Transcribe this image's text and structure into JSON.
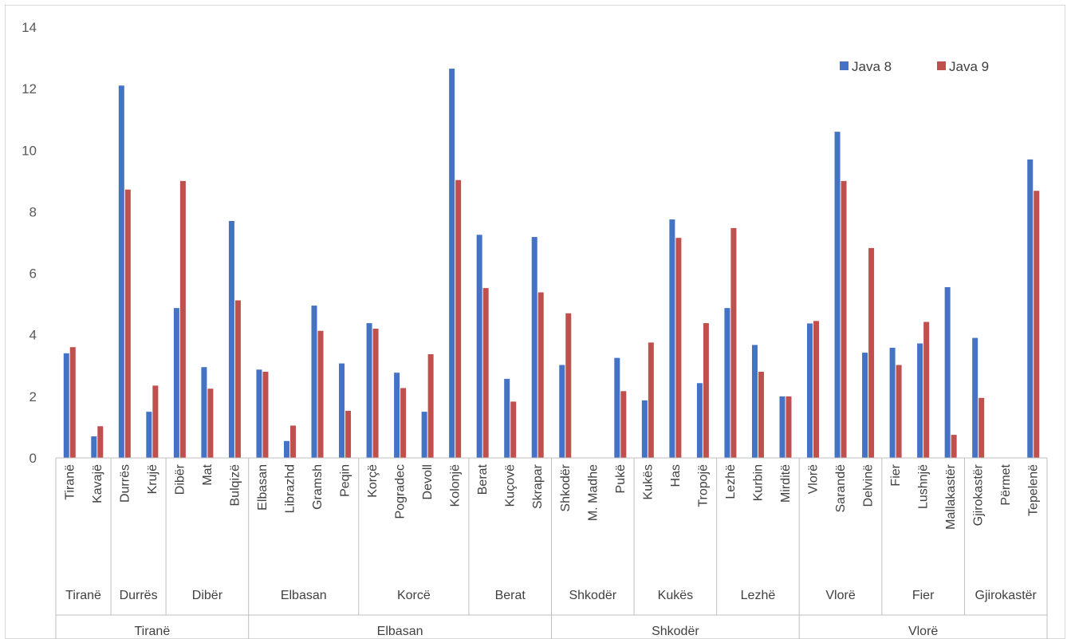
{
  "chart_data": {
    "type": "bar",
    "title": "",
    "xlabel": "",
    "ylabel": "",
    "ylim": [
      0,
      14
    ],
    "yticks": [
      "0",
      "2",
      "4",
      "6",
      "8",
      "10",
      "12",
      "14"
    ],
    "grid": false,
    "legend_position": "top-right",
    "colors": {
      "Java 8": "#4472C4",
      "Java 9": "#C0504D"
    },
    "categories": [
      "Tiranë",
      "Kavajë",
      "Durrës",
      "Krujë",
      "Dibër",
      "Mat",
      "Bulqizë",
      "Elbasan",
      "Librazhd",
      "Gramsh",
      "Peqin",
      "Korçë",
      "Pogradec",
      "Devoll",
      "Kolonjë",
      "Berat",
      "Kuçovë",
      "Skrapar",
      "Shkodër",
      "M. Madhe",
      "Pukë",
      "Kukës",
      "Has",
      "Tropojë",
      "Lezhë",
      "Kurbin",
      "Mirditë",
      "Vlorë",
      "Sarandë",
      "Delvinë",
      "Fier",
      "Lushnjë",
      "Mallakastër",
      "Gjirokastër",
      "Përmet",
      "Tepelenë"
    ],
    "level2": [
      {
        "label": "Tiranë",
        "span": 2
      },
      {
        "label": "Durrës",
        "span": 2
      },
      {
        "label": "Dibër",
        "span": 3
      },
      {
        "label": "Elbasan",
        "span": 4
      },
      {
        "label": "Korcë",
        "span": 4
      },
      {
        "label": "Berat",
        "span": 3
      },
      {
        "label": "Shkodër",
        "span": 3
      },
      {
        "label": "Kukës",
        "span": 3
      },
      {
        "label": "Lezhë",
        "span": 3
      },
      {
        "label": "Vlorë",
        "span": 3
      },
      {
        "label": "Fier",
        "span": 3
      },
      {
        "label": "Gjirokastër",
        "span": 3
      }
    ],
    "level3": [
      {
        "label": "Tiranë",
        "span": 7
      },
      {
        "label": "Elbasan",
        "span": 11
      },
      {
        "label": "Shkodër",
        "span": 9
      },
      {
        "label": "Vlorë",
        "span": 9
      }
    ],
    "series": [
      {
        "name": "Java 8",
        "values": [
          3.4,
          0.7,
          12.1,
          1.5,
          4.87,
          2.95,
          7.7,
          2.87,
          0.55,
          4.95,
          3.07,
          4.38,
          2.77,
          1.5,
          12.65,
          7.25,
          2.57,
          7.18,
          3.02,
          0,
          3.25,
          1.87,
          7.75,
          2.43,
          4.87,
          3.67,
          2.0,
          4.37,
          10.6,
          3.42,
          3.58,
          3.72,
          5.55,
          3.9,
          0,
          9.7
        ]
      },
      {
        "name": "Java 9",
        "values": [
          3.6,
          1.03,
          8.72,
          2.35,
          9.0,
          2.25,
          5.12,
          2.8,
          1.05,
          4.13,
          1.53,
          4.2,
          2.27,
          3.37,
          9.03,
          5.52,
          1.83,
          5.38,
          4.7,
          0,
          2.17,
          3.75,
          7.15,
          4.38,
          7.47,
          2.8,
          2.0,
          4.45,
          9.0,
          6.82,
          3.02,
          4.42,
          0.75,
          1.95,
          0,
          8.68
        ]
      }
    ]
  }
}
